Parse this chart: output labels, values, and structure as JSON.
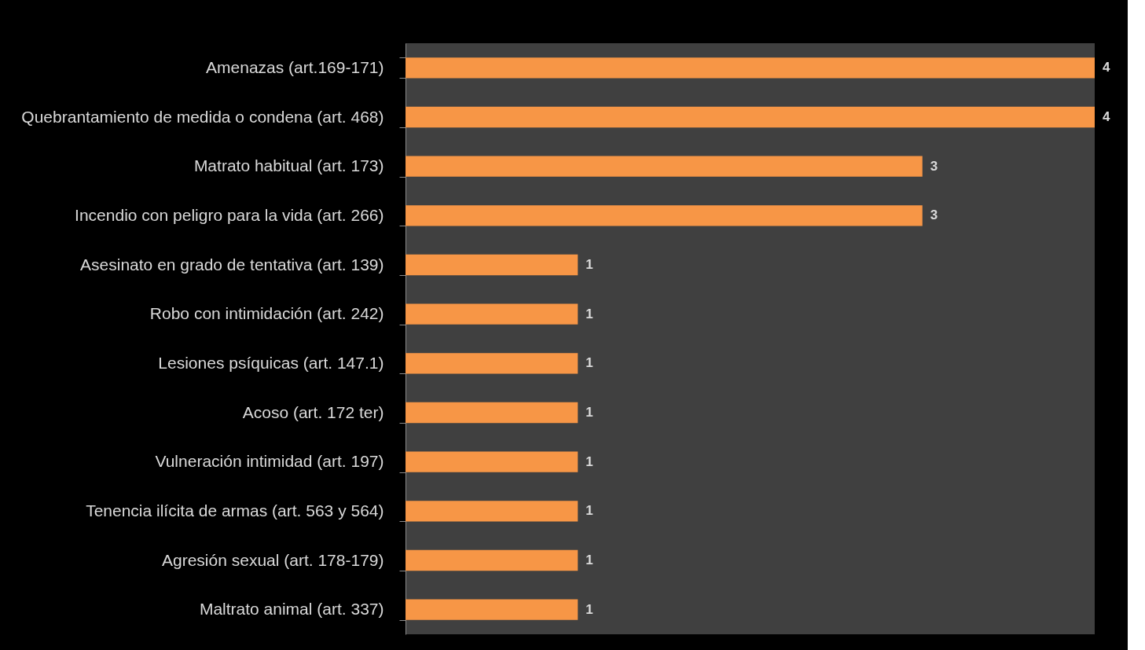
{
  "chart_data": {
    "type": "bar",
    "orientation": "horizontal",
    "categories": [
      "Amenazas (art.169-171)",
      "Quebrantamiento de medida o condena (art. 468)",
      "Matrato habitual (art. 173)",
      "Incendio con peligro para la vida (art. 266)",
      "Asesinato en grado de tentativa (art. 139)",
      "Robo con intimidación (art. 242)",
      "Lesiones psíquicas (art. 147.1)",
      "Acoso (art. 172 ter)",
      "Vulneración intimidad (art. 197)",
      "Tenencia ilícita de armas (art. 563 y 564)",
      "Agresión sexual (art. 178-179)",
      "Maltrato animal (art. 337)"
    ],
    "values": [
      4,
      4,
      3,
      3,
      1,
      1,
      1,
      1,
      1,
      1,
      1,
      1
    ],
    "color": "#f79646",
    "data_labels": true,
    "tick_labels": "y"
  }
}
